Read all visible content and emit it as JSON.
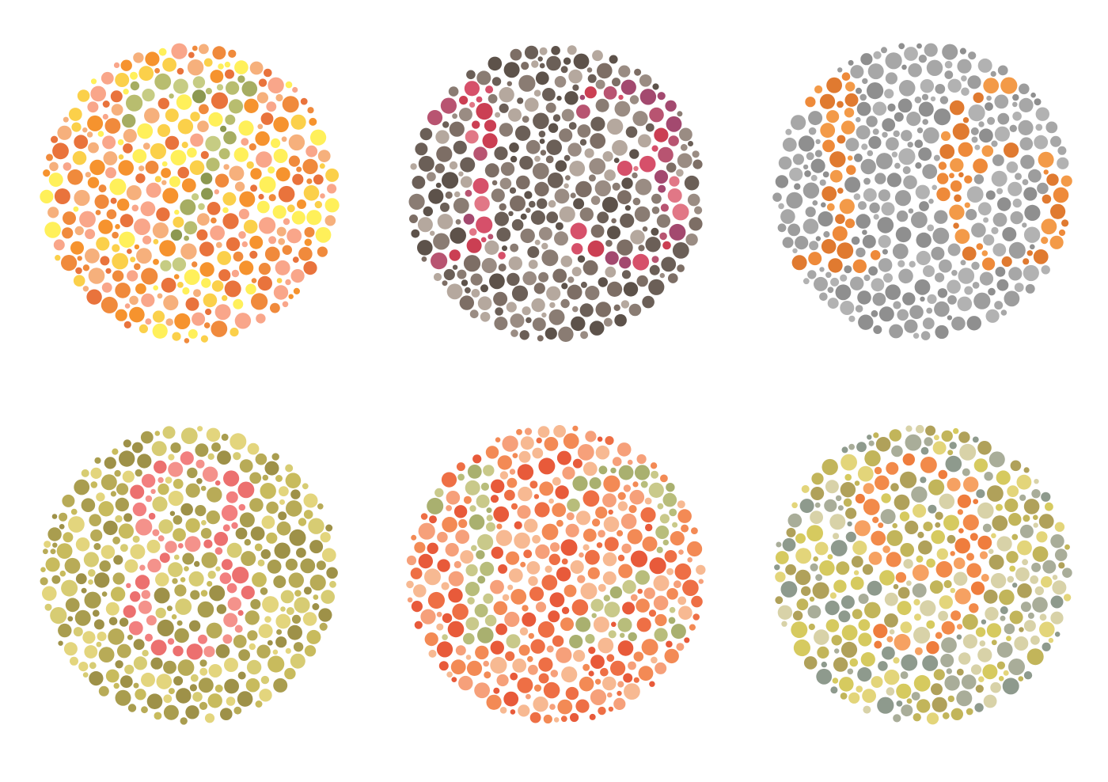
{
  "plates": [
    {
      "number": "7",
      "figure_color": [
        "#a6ad62",
        "#c6cc83",
        "#8c9850",
        "#b8bd6f"
      ],
      "ground_color": [
        "#f08a3c",
        "#f6b07c",
        "#fbd04a",
        "#f9a68a",
        "#f6932e",
        "#fff05a",
        "#e9733c"
      ]
    },
    {
      "number": "13",
      "figure_color": [
        "#a3496f",
        "#d6506a",
        "#e17786",
        "#b85471",
        "#cb3f53"
      ],
      "ground_color": [
        "#5d524a",
        "#7d6e65",
        "#9a8c83",
        "#b5a89e",
        "#6b5f57",
        "#8a7c73"
      ]
    },
    {
      "number": "16",
      "figure_color": [
        "#ee8a3a",
        "#f39a48",
        "#e07a30"
      ],
      "ground_color": [
        "#9d9d9d",
        "#a7a7a7",
        "#8f8f8f",
        "#b2b2b2"
      ]
    },
    {
      "number": "8",
      "figure_color": [
        "#f27f7f",
        "#f4928b",
        "#ec706f"
      ],
      "ground_color": [
        "#a99d4f",
        "#c8bb5d",
        "#d7cc73",
        "#b8ab57",
        "#9e9148",
        "#e3d57d"
      ]
    },
    {
      "number": "12",
      "figure_color": [
        "#b8bd7b",
        "#c9c98a",
        "#a9b06f"
      ],
      "ground_color": [
        "#ee6f45",
        "#f6a07a",
        "#f7b992",
        "#e85a3a",
        "#f38a55"
      ]
    },
    {
      "number": "9",
      "figure_color": [
        "#f28a4a",
        "#ef7d3d",
        "#f6a162"
      ],
      "ground_color": [
        "#d6ca5f",
        "#c2b55a",
        "#8e9a8d",
        "#a9ad99",
        "#e3d57a",
        "#b0a15a",
        "#d8d2a8"
      ]
    }
  ]
}
